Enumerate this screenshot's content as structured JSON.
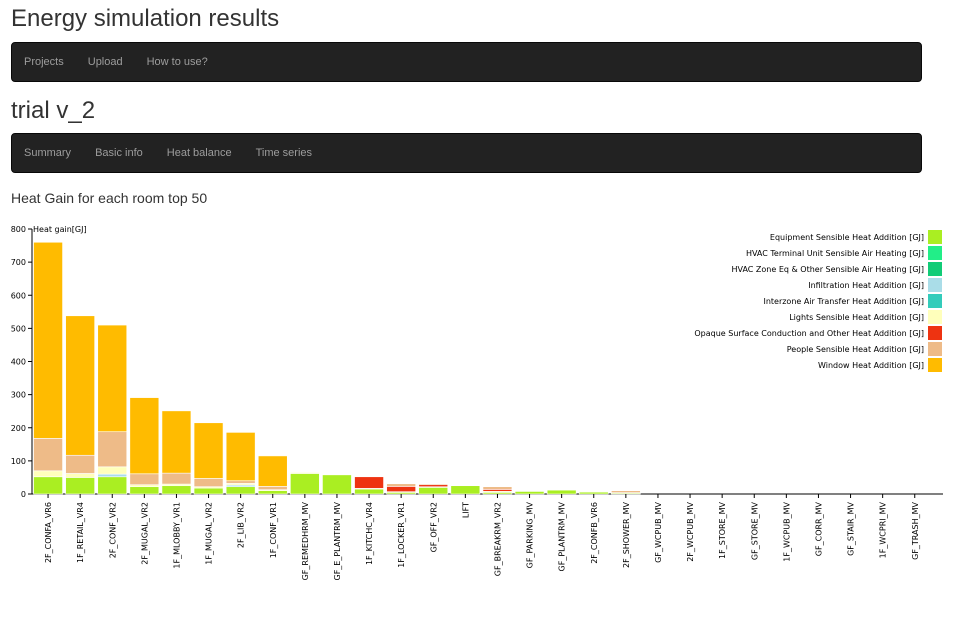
{
  "header": {
    "title": "Energy simulation results"
  },
  "top_nav": {
    "items": [
      "Projects",
      "Upload",
      "How to use?"
    ]
  },
  "project": {
    "title": "trial v_2"
  },
  "sub_nav": {
    "items": [
      "Summary",
      "Basic info",
      "Heat balance",
      "Time series"
    ]
  },
  "section": {
    "title": "Heat Gain for each room top 50"
  },
  "chart_data": {
    "type": "bar",
    "stacked": true,
    "ylabel": "Heat gain[GJ]",
    "ylim": [
      0,
      800
    ],
    "yticks": [
      0,
      100,
      200,
      300,
      400,
      500,
      600,
      700,
      800
    ],
    "legend_position": "top-right",
    "categories": [
      "2F_CONFA_VR6",
      "1F_RETAIL_VR4",
      "2F_CONF_VR2",
      "2F_MUGAL_VR2",
      "1F_MLOBBY_VR1",
      "1F_MUGAL_VR2",
      "2F_LIB_VR2",
      "1F_CONF_VR1",
      "GF_REMEDHRM_MV",
      "GF_E_PLANTRM_MV",
      "1F_KITCHC_VR4",
      "1F_LOCKER_VR1",
      "GF_OFF_VR2",
      "LIFT",
      "GF_BREAKRM_VR2",
      "GF_PARKING_MV",
      "GF_PLANTRM_MV",
      "2F_CONFB_VR6",
      "2F_SHOWER_MV",
      "GF_WCPUB_MV",
      "2F_WCPUB_MV",
      "1F_STORE_MV",
      "GF_STORE_MV",
      "1F_WCPUB_MV",
      "GF_CORR_MV",
      "GF_STAIR_MV",
      "1F_WCPRI_MV",
      "GF_TRASH_MV"
    ],
    "series": [
      {
        "name": "Equipment Sensible Heat Addition [GJ]",
        "color": "#aaee22",
        "values": [
          52,
          50,
          52,
          22,
          25,
          18,
          22,
          10,
          62,
          58,
          15,
          5,
          20,
          25,
          5,
          8,
          12,
          6,
          3,
          0,
          0,
          0,
          0,
          0,
          0,
          0,
          0,
          0
        ]
      },
      {
        "name": "HVAC Terminal Unit Sensible Air Heating [GJ]",
        "color": "#22ee88",
        "values": [
          0,
          0,
          0,
          0,
          0,
          0,
          0,
          0,
          0,
          0,
          0,
          0,
          0,
          0,
          0,
          0,
          0,
          0,
          0,
          0,
          0,
          0,
          0,
          0,
          0,
          0,
          0,
          0
        ]
      },
      {
        "name": "HVAC Zone Eq & Other Sensible Air Heating [GJ]",
        "color": "#11cc77",
        "values": [
          0,
          0,
          0,
          0,
          0,
          0,
          0,
          0,
          0,
          0,
          0,
          0,
          0,
          0,
          0,
          0,
          0,
          0,
          0,
          0,
          0,
          0,
          0,
          0,
          0,
          0,
          0,
          0
        ]
      },
      {
        "name": "Infiltration Heat Addition [GJ]",
        "color": "#aadde8",
        "values": [
          0,
          0,
          8,
          0,
          0,
          0,
          5,
          0,
          0,
          0,
          0,
          0,
          0,
          0,
          0,
          0,
          0,
          0,
          0,
          0,
          0,
          0,
          0,
          0,
          0,
          0,
          0,
          0
        ]
      },
      {
        "name": "Interzone Air Transfer Heat Addition [GJ]",
        "color": "#33ccbb",
        "values": [
          0,
          0,
          0,
          0,
          0,
          0,
          0,
          0,
          0,
          0,
          0,
          0,
          0,
          0,
          0,
          0,
          0,
          0,
          0,
          0,
          0,
          0,
          0,
          0,
          0,
          0,
          0,
          0
        ]
      },
      {
        "name": "Lights Sensible Heat Addition [GJ]",
        "color": "#ffffbb",
        "values": [
          18,
          12,
          22,
          6,
          5,
          4,
          5,
          3,
          3,
          2,
          2,
          2,
          2,
          0,
          3,
          2,
          1,
          2,
          1,
          0,
          0,
          0,
          0,
          0,
          0,
          0,
          0,
          0
        ]
      },
      {
        "name": "Opaque Surface Conduction and Other Heat Addition [GJ]",
        "color": "#ee3311",
        "values": [
          0,
          0,
          0,
          0,
          0,
          0,
          0,
          0,
          0,
          0,
          35,
          16,
          6,
          0,
          6,
          0,
          0,
          0,
          0,
          0,
          0,
          0,
          0,
          0,
          0,
          0,
          0,
          0
        ]
      },
      {
        "name": "People Sensible Heat Addition [GJ]",
        "color": "#eebb88",
        "values": [
          98,
          55,
          106,
          33,
          33,
          25,
          8,
          10,
          0,
          0,
          0,
          8,
          3,
          0,
          8,
          0,
          0,
          0,
          6,
          0,
          0,
          0,
          0,
          0,
          0,
          0,
          0,
          0
        ]
      },
      {
        "name": "Window Heat Addition [GJ]",
        "color": "#ffbb00",
        "values": [
          592,
          421,
          322,
          230,
          188,
          168,
          146,
          92,
          0,
          0,
          0,
          0,
          0,
          0,
          0,
          0,
          0,
          0,
          0,
          0,
          0,
          0,
          0,
          0,
          0,
          0,
          0,
          0
        ]
      }
    ]
  }
}
